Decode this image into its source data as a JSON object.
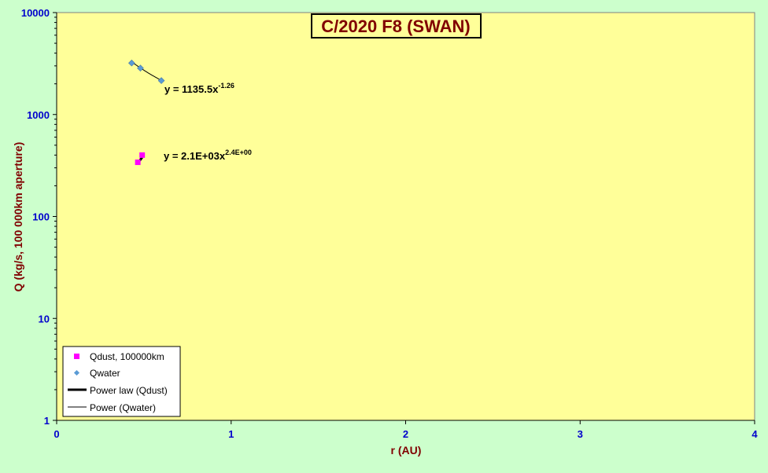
{
  "chart_data": {
    "type": "scatter",
    "title": "C/2020 F8 (SWAN)",
    "xlabel": "r (AU)",
    "ylabel": "Q (kg/s, 100 000km aperture)",
    "xlim": [
      0,
      4
    ],
    "ylim": [
      1,
      10000
    ],
    "yscale": "log",
    "x_ticks": [
      "0",
      "1",
      "2",
      "3",
      "4"
    ],
    "y_ticks": [
      "1",
      "10",
      "100",
      "1000",
      "10000"
    ],
    "grid": false,
    "legend_position": "bottom-left",
    "series": [
      {
        "name": "Qdust, 100000km",
        "marker": "square",
        "color": "#ff00ff",
        "points": [
          [
            0.465,
            340
          ],
          [
            0.49,
            400
          ]
        ]
      },
      {
        "name": "Qwater",
        "marker": "diamond",
        "color": "#5b9bd5",
        "points": [
          [
            0.43,
            3200
          ],
          [
            0.48,
            2850
          ],
          [
            0.6,
            2150
          ]
        ]
      }
    ],
    "trendlines": [
      {
        "name": "Power law (Qdust)",
        "equation_prefix": "y = 2.1E+03x",
        "equation_exponent": "2.4E+00",
        "coef": 2100,
        "exp": 2.4,
        "x_range": [
          0.465,
          0.49
        ],
        "color": "#000000",
        "width": 3
      },
      {
        "name": "Power (Qwater)",
        "equation_prefix": "y = 1135.5x",
        "equation_exponent": "-1.26",
        "coef": 1135.5,
        "exp": -1.26,
        "x_range": [
          0.43,
          0.6
        ],
        "color": "#000000",
        "width": 1
      }
    ]
  }
}
